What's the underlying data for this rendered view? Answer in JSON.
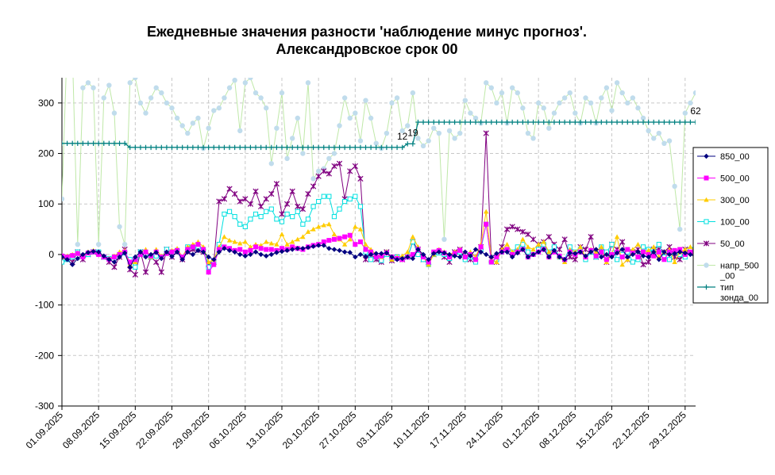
{
  "chart_data": {
    "type": "line",
    "title_line1": "Ежедневные значения разности 'наблюдение минус прогноз'.",
    "title_line2": "Александровское    срок 00",
    "xlabel": "",
    "ylabel": "",
    "ylim": [
      -300,
      350
    ],
    "yticks": [
      "300",
      "200",
      "100",
      "0",
      "-100",
      "-200",
      "-300"
    ],
    "xlim": [
      "2025-09-01",
      "2025-12-31"
    ],
    "xticks": [
      "01.09.2025",
      "08.09.2025",
      "15.09.2025",
      "22.09.2025",
      "29.09.2025",
      "06.10.2025",
      "13.10.2025",
      "20.10.2025",
      "27.10.2025",
      "03.11.2025",
      "10.11.2025",
      "17.11.2025",
      "24.11.2025",
      "01.12.2025",
      "08.12.2025",
      "15.12.2025",
      "22.12.2025",
      "29.12.2025"
    ],
    "grid": true,
    "legend_position": "right",
    "colors": {
      "850_00": "#000080",
      "500_00": "#ff00ff",
      "300_00": "#ffcc00",
      "100_00": "#00e0e0",
      "50_00": "#800080",
      "napr": "#bfe8a8",
      "napr_marker": "#c0dcec",
      "tip": "#008080"
    },
    "legend": [
      "850_00",
      "500_00",
      "300_00",
      "100_00",
      "50_00",
      "напр_500\n_00",
      "тип\nзонда_00"
    ],
    "annotations": [
      "12",
      "19",
      "62"
    ],
    "series": [
      {
        "name": "850_00",
        "start": "2025-09-01",
        "values": [
          -5,
          -10,
          -20,
          -8,
          0,
          4,
          6,
          5,
          -3,
          -10,
          -15,
          -5,
          3,
          -25,
          -5,
          5,
          -5,
          0,
          4,
          -8,
          5,
          -4,
          5,
          -10,
          5,
          0,
          8,
          5,
          -5,
          -10,
          5,
          12,
          8,
          5,
          0,
          -3,
          0,
          5,
          0,
          -3,
          0,
          4,
          6,
          8,
          10,
          12,
          12,
          14,
          16,
          18,
          18,
          12,
          10,
          8,
          5,
          4,
          -5,
          0,
          -4,
          0,
          2,
          2,
          3,
          -5,
          -10,
          -8,
          -5,
          -8,
          10,
          0,
          -10,
          2,
          5,
          3,
          0,
          -3,
          -5,
          5,
          -3,
          10,
          5,
          0,
          -5,
          2,
          5,
          5,
          -5,
          3,
          10,
          -5,
          0,
          5,
          10,
          -5,
          8,
          -5,
          -10,
          3,
          2,
          5,
          -3,
          5,
          10,
          -5,
          0,
          -5,
          3,
          10,
          -5,
          0,
          5,
          -3,
          -5,
          5,
          -10,
          5,
          0,
          2,
          5,
          3,
          0,
          -5,
          0,
          5,
          0,
          -10,
          2
        ]
      },
      {
        "name": "500_00",
        "start": "2025-09-01",
        "values": [
          -3,
          -5,
          -2,
          2,
          -5,
          3,
          5,
          0,
          -5,
          -10,
          -5,
          0,
          5,
          -15,
          -10,
          0,
          5,
          -3,
          5,
          -5,
          2,
          5,
          8,
          -5,
          10,
          15,
          20,
          10,
          -35,
          -20,
          10,
          15,
          12,
          8,
          10,
          5,
          8,
          15,
          12,
          10,
          10,
          8,
          12,
          10,
          15,
          12,
          10,
          15,
          18,
          20,
          25,
          28,
          30,
          32,
          35,
          38,
          20,
          25,
          10,
          5,
          -5,
          -3,
          3,
          -5,
          -8,
          -10,
          -5,
          0,
          10,
          -5,
          -15,
          5,
          8,
          3,
          -5,
          2,
          8,
          -5,
          0,
          -10,
          15,
          60,
          -15,
          -5,
          5,
          10,
          0,
          5,
          10,
          -5,
          0,
          5,
          10,
          -5,
          5,
          -3,
          -10,
          5,
          0,
          5,
          -5,
          8,
          -3,
          5,
          -10,
          0,
          5,
          -5,
          10,
          3,
          -5,
          5,
          0,
          -3,
          5,
          -10,
          5,
          8,
          10,
          0,
          5,
          -5,
          5,
          0,
          -5
        ]
      },
      {
        "name": "300_00",
        "start": "2025-09-01",
        "values": [
          -5,
          -3,
          0,
          3,
          -2,
          5,
          8,
          3,
          -5,
          -8,
          -3,
          5,
          8,
          -20,
          -15,
          5,
          10,
          -5,
          10,
          -3,
          5,
          8,
          12,
          -5,
          15,
          20,
          25,
          15,
          -15,
          -10,
          15,
          35,
          28,
          25,
          22,
          25,
          15,
          20,
          18,
          25,
          22,
          20,
          40,
          20,
          25,
          30,
          35,
          45,
          50,
          55,
          58,
          60,
          40,
          30,
          20,
          30,
          55,
          50,
          20,
          10,
          0,
          -5,
          5,
          -10,
          -5,
          -3,
          5,
          35,
          15,
          -5,
          -20,
          0,
          10,
          5,
          0,
          5,
          10,
          -5,
          5,
          -5,
          20,
          85,
          -10,
          -15,
          10,
          20,
          5,
          10,
          30,
          15,
          10,
          20,
          25,
          5,
          8,
          -5,
          -15,
          10,
          5,
          15,
          -5,
          10,
          5,
          15,
          -15,
          0,
          35,
          -20,
          -10,
          10,
          20,
          5,
          8,
          15,
          -5,
          5,
          10,
          -15,
          5,
          10,
          15,
          5,
          10,
          -5,
          0,
          -5
        ]
      },
      {
        "name": "100_00",
        "start": "2025-09-01",
        "values": [
          -15,
          -10,
          -5,
          5,
          -3,
          0,
          5,
          5,
          -5,
          -8,
          -5,
          0,
          3,
          -10,
          -25,
          5,
          0,
          -5,
          -3,
          -5,
          10,
          5,
          8,
          -5,
          15,
          15,
          15,
          10,
          -25,
          -15,
          20,
          80,
          85,
          75,
          60,
          55,
          70,
          80,
          75,
          85,
          90,
          70,
          65,
          80,
          75,
          85,
          60,
          70,
          95,
          105,
          115,
          115,
          75,
          90,
          105,
          110,
          115,
          95,
          5,
          -10,
          -5,
          -12,
          0,
          -8,
          -5,
          -8,
          -5,
          25,
          0,
          -10,
          -20,
          0,
          3,
          0,
          -8,
          0,
          5,
          -10,
          -5,
          -15,
          10,
          60,
          -15,
          -10,
          5,
          10,
          5,
          15,
          20,
          5,
          0,
          10,
          20,
          5,
          15,
          -5,
          -10,
          15,
          5,
          10,
          -10,
          5,
          -5,
          15,
          5,
          20,
          -10,
          0,
          5,
          -15,
          -10,
          15,
          10,
          5,
          20,
          -5,
          -10,
          5,
          0,
          -5,
          10,
          5,
          5,
          -5,
          10,
          0,
          5,
          -10
        ]
      },
      {
        "name": "50_00",
        "start": "2025-09-01",
        "values": [
          -10,
          -5,
          -15,
          5,
          -10,
          0,
          5,
          3,
          -5,
          -15,
          -25,
          -5,
          10,
          -30,
          -40,
          5,
          -35,
          -5,
          -15,
          -35,
          10,
          -5,
          5,
          -10,
          5,
          10,
          8,
          5,
          -20,
          -15,
          105,
          110,
          130,
          120,
          105,
          110,
          100,
          125,
          95,
          110,
          120,
          140,
          80,
          100,
          125,
          95,
          90,
          120,
          135,
          155,
          165,
          160,
          175,
          180,
          110,
          165,
          175,
          150,
          -10,
          0,
          -10,
          -15,
          5,
          -12,
          -5,
          -10,
          -5,
          25,
          10,
          -10,
          -15,
          0,
          5,
          -5,
          -15,
          5,
          10,
          -5,
          -10,
          -5,
          15,
          240,
          -10,
          -15,
          15,
          50,
          55,
          50,
          45,
          40,
          30,
          20,
          25,
          35,
          20,
          10,
          30,
          -5,
          -10,
          15,
          10,
          35,
          -5,
          5,
          -15,
          20,
          10,
          25,
          -10,
          5,
          10,
          -20,
          -15,
          10,
          10,
          5,
          15,
          -5,
          -10,
          10,
          5,
          -5,
          40,
          5,
          10,
          -5,
          10,
          5,
          -10
        ]
      },
      {
        "name": "напр_500_00",
        "start": "2025-09-01",
        "values": [
          110,
          420,
          400,
          20,
          330,
          340,
          330,
          20,
          310,
          335,
          280,
          55,
          20,
          340,
          350,
          300,
          280,
          310,
          330,
          320,
          300,
          290,
          270,
          255,
          240,
          260,
          270,
          210,
          250,
          285,
          290,
          310,
          330,
          345,
          245,
          340,
          350,
          320,
          310,
          290,
          180,
          250,
          320,
          190,
          230,
          270,
          200,
          340,
          150,
          165,
          170,
          190,
          200,
          255,
          310,
          270,
          280,
          225,
          305,
          270,
          220,
          210,
          240,
          300,
          310,
          245,
          255,
          320,
          230,
          215,
          225,
          250,
          240,
          30,
          245,
          230,
          240,
          305,
          280,
          270,
          260,
          340,
          330,
          300,
          320,
          260,
          330,
          320,
          290,
          240,
          230,
          300,
          290,
          250,
          280,
          300,
          310,
          320,
          280,
          260,
          310,
          300,
          260,
          310,
          330,
          285,
          340,
          320,
          300,
          310,
          290,
          270,
          245,
          230,
          240,
          220,
          225,
          135,
          50,
          280,
          300,
          320,
          340,
          290,
          250,
          230,
          210,
          320,
          240,
          235
        ]
      },
      {
        "name": "тип зонда_00",
        "start": "2025-09-01",
        "values": [
          220,
          220,
          220,
          220,
          220,
          220,
          220,
          220,
          220,
          220,
          220,
          220,
          220,
          212,
          212,
          212,
          212,
          212,
          212,
          212,
          212,
          212,
          212,
          212,
          212,
          212,
          212,
          212,
          212,
          212,
          212,
          212,
          212,
          212,
          212,
          212,
          212,
          212,
          212,
          212,
          212,
          212,
          212,
          212,
          212,
          212,
          212,
          212,
          212,
          212,
          212,
          212,
          212,
          212,
          212,
          212,
          212,
          212,
          212,
          212,
          212,
          212,
          212,
          212,
          212,
          212,
          219,
          219,
          262,
          262,
          262,
          262,
          262,
          262,
          262,
          262,
          262,
          262,
          262,
          262,
          262,
          262,
          262,
          262,
          262,
          262,
          262,
          262,
          262,
          262,
          262,
          262,
          262,
          262,
          262,
          262,
          262,
          262,
          262,
          262,
          262,
          262,
          262,
          262,
          262,
          262,
          262,
          262,
          262,
          262,
          262,
          262,
          262,
          262,
          262,
          262,
          262,
          262,
          262,
          262,
          262,
          262,
          262
        ]
      }
    ]
  }
}
